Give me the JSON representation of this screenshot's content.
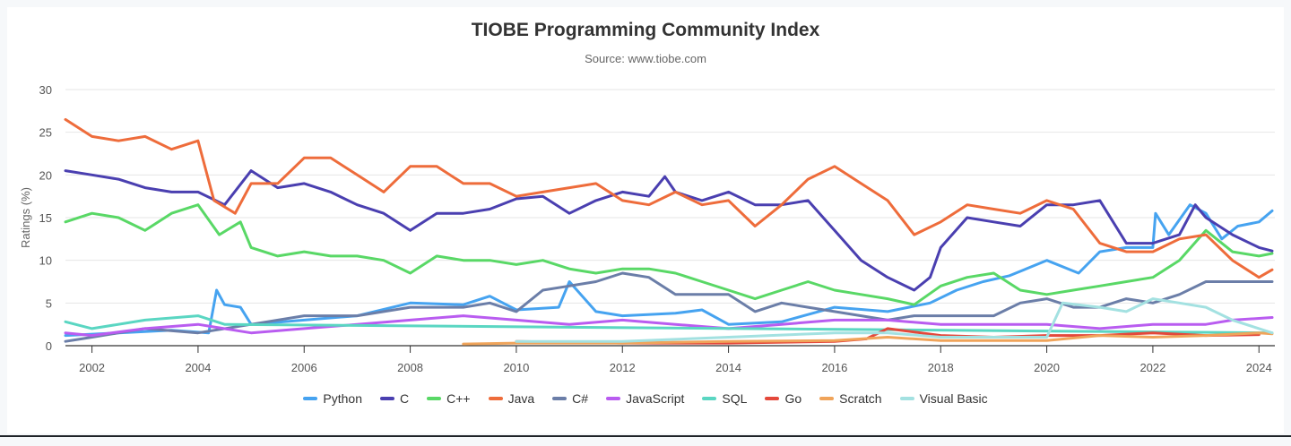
{
  "chart_data": {
    "type": "line",
    "title": "TIOBE Programming Community Index",
    "subtitle": "Source: www.tiobe.com",
    "ylabel": "Ratings (%)",
    "xlabel": "",
    "ylim": [
      0,
      30
    ],
    "xlim": [
      2001.5,
      2024.3
    ],
    "yticks": [
      0,
      5,
      10,
      15,
      20,
      25,
      30
    ],
    "xticks": [
      "2002",
      "2004",
      "2006",
      "2008",
      "2010",
      "2012",
      "2014",
      "2016",
      "2018",
      "2020",
      "2022",
      "2024"
    ],
    "grid": "horizontal",
    "legend_position": "bottom",
    "series": [
      {
        "name": "Python",
        "color": "#46a3f0",
        "points": [
          [
            2001.5,
            1.2
          ],
          [
            2002.5,
            1.5
          ],
          [
            2003.5,
            1.8
          ],
          [
            2004.2,
            1.5
          ],
          [
            2004.35,
            6.5
          ],
          [
            2004.5,
            4.8
          ],
          [
            2004.8,
            4.5
          ],
          [
            2005,
            2.5
          ],
          [
            2006,
            3
          ],
          [
            2007,
            3.5
          ],
          [
            2008,
            5
          ],
          [
            2009,
            4.8
          ],
          [
            2009.5,
            5.8
          ],
          [
            2010,
            4.2
          ],
          [
            2010.8,
            4.5
          ],
          [
            2011,
            7.5
          ],
          [
            2011.5,
            4
          ],
          [
            2012,
            3.5
          ],
          [
            2013,
            3.8
          ],
          [
            2013.5,
            4.2
          ],
          [
            2014,
            2.5
          ],
          [
            2015,
            2.8
          ],
          [
            2016,
            4.5
          ],
          [
            2017,
            4
          ],
          [
            2017.8,
            5
          ],
          [
            2018.3,
            6.5
          ],
          [
            2018.8,
            7.5
          ],
          [
            2019.3,
            8.2
          ],
          [
            2020,
            10
          ],
          [
            2020.6,
            8.5
          ],
          [
            2021,
            11
          ],
          [
            2021.5,
            11.5
          ],
          [
            2022,
            11.5
          ],
          [
            2022.05,
            15.5
          ],
          [
            2022.3,
            13
          ],
          [
            2022.7,
            16.5
          ],
          [
            2023,
            15.5
          ],
          [
            2023.3,
            12.5
          ],
          [
            2023.6,
            14
          ],
          [
            2024,
            14.5
          ],
          [
            2024.25,
            15.8
          ]
        ]
      },
      {
        "name": "C",
        "color": "#4a3fb0",
        "points": [
          [
            2001.5,
            20.5
          ],
          [
            2002,
            20
          ],
          [
            2002.5,
            19.5
          ],
          [
            2003,
            18.5
          ],
          [
            2003.5,
            18
          ],
          [
            2004,
            18
          ],
          [
            2004.5,
            16.5
          ],
          [
            2005,
            20.5
          ],
          [
            2005.5,
            18.5
          ],
          [
            2006,
            19
          ],
          [
            2006.5,
            18
          ],
          [
            2007,
            16.5
          ],
          [
            2007.5,
            15.5
          ],
          [
            2008,
            13.5
          ],
          [
            2008.5,
            15.5
          ],
          [
            2009,
            15.5
          ],
          [
            2009.5,
            16
          ],
          [
            2010,
            17.2
          ],
          [
            2010.5,
            17.5
          ],
          [
            2011,
            15.5
          ],
          [
            2011.5,
            17
          ],
          [
            2012,
            18
          ],
          [
            2012.5,
            17.5
          ],
          [
            2012.8,
            19.8
          ],
          [
            2013,
            18
          ],
          [
            2013.5,
            17
          ],
          [
            2014,
            18
          ],
          [
            2014.5,
            16.5
          ],
          [
            2015,
            16.5
          ],
          [
            2015.5,
            17
          ],
          [
            2016,
            13.5
          ],
          [
            2016.5,
            10
          ],
          [
            2017,
            8
          ],
          [
            2017.5,
            6.5
          ],
          [
            2017.8,
            8
          ],
          [
            2018,
            11.5
          ],
          [
            2018.5,
            15
          ],
          [
            2019,
            14.5
          ],
          [
            2019.5,
            14
          ],
          [
            2020,
            16.5
          ],
          [
            2020.5,
            16.5
          ],
          [
            2021,
            17
          ],
          [
            2021.5,
            12
          ],
          [
            2022,
            12
          ],
          [
            2022.5,
            13
          ],
          [
            2022.8,
            16.5
          ],
          [
            2023,
            15
          ],
          [
            2023.5,
            13
          ],
          [
            2024,
            11.5
          ],
          [
            2024.25,
            11.1
          ]
        ]
      },
      {
        "name": "C++",
        "color": "#59d866",
        "points": [
          [
            2001.5,
            14.5
          ],
          [
            2002,
            15.5
          ],
          [
            2002.5,
            15
          ],
          [
            2003,
            13.5
          ],
          [
            2003.5,
            15.5
          ],
          [
            2004,
            16.5
          ],
          [
            2004.4,
            13
          ],
          [
            2004.8,
            14.5
          ],
          [
            2005,
            11.5
          ],
          [
            2005.5,
            10.5
          ],
          [
            2006,
            11
          ],
          [
            2006.5,
            10.5
          ],
          [
            2007,
            10.5
          ],
          [
            2007.5,
            10
          ],
          [
            2008,
            8.5
          ],
          [
            2008.5,
            10.5
          ],
          [
            2009,
            10
          ],
          [
            2009.5,
            10
          ],
          [
            2010,
            9.5
          ],
          [
            2010.5,
            10
          ],
          [
            2011,
            9
          ],
          [
            2011.5,
            8.5
          ],
          [
            2012,
            9
          ],
          [
            2012.5,
            9
          ],
          [
            2013,
            8.5
          ],
          [
            2013.5,
            7.5
          ],
          [
            2014,
            6.5
          ],
          [
            2014.5,
            5.5
          ],
          [
            2015,
            6.5
          ],
          [
            2015.5,
            7.5
          ],
          [
            2016,
            6.5
          ],
          [
            2016.5,
            6
          ],
          [
            2017,
            5.5
          ],
          [
            2017.5,
            4.8
          ],
          [
            2018,
            7
          ],
          [
            2018.5,
            8
          ],
          [
            2019,
            8.5
          ],
          [
            2019.5,
            6.5
          ],
          [
            2020,
            6
          ],
          [
            2020.5,
            6.5
          ],
          [
            2021,
            7
          ],
          [
            2021.5,
            7.5
          ],
          [
            2022,
            8
          ],
          [
            2022.5,
            10
          ],
          [
            2023,
            13.5
          ],
          [
            2023.5,
            11
          ],
          [
            2024,
            10.5
          ],
          [
            2024.25,
            10.8
          ]
        ]
      },
      {
        "name": "Java",
        "color": "#ee6c3b",
        "points": [
          [
            2001.5,
            26.5
          ],
          [
            2002,
            24.5
          ],
          [
            2002.5,
            24
          ],
          [
            2003,
            24.5
          ],
          [
            2003.5,
            23
          ],
          [
            2004,
            24
          ],
          [
            2004.3,
            17
          ],
          [
            2004.7,
            15.5
          ],
          [
            2005,
            19
          ],
          [
            2005.5,
            19
          ],
          [
            2006,
            22
          ],
          [
            2006.5,
            22
          ],
          [
            2007,
            20
          ],
          [
            2007.5,
            18
          ],
          [
            2008,
            21
          ],
          [
            2008.5,
            21
          ],
          [
            2009,
            19
          ],
          [
            2009.5,
            19
          ],
          [
            2010,
            17.5
          ],
          [
            2010.5,
            18
          ],
          [
            2011,
            18.5
          ],
          [
            2011.5,
            19
          ],
          [
            2012,
            17
          ],
          [
            2012.5,
            16.5
          ],
          [
            2013,
            18
          ],
          [
            2013.5,
            16.5
          ],
          [
            2014,
            17
          ],
          [
            2014.5,
            14
          ],
          [
            2015,
            16.5
          ],
          [
            2015.5,
            19.5
          ],
          [
            2016,
            21
          ],
          [
            2016.5,
            19
          ],
          [
            2017,
            17
          ],
          [
            2017.5,
            13
          ],
          [
            2018,
            14.5
          ],
          [
            2018.5,
            16.5
          ],
          [
            2019,
            16
          ],
          [
            2019.5,
            15.5
          ],
          [
            2020,
            17
          ],
          [
            2020.5,
            16
          ],
          [
            2021,
            12
          ],
          [
            2021.5,
            11
          ],
          [
            2022,
            11
          ],
          [
            2022.5,
            12.5
          ],
          [
            2023,
            13
          ],
          [
            2023.5,
            10
          ],
          [
            2024,
            8
          ],
          [
            2024.25,
            8.9
          ]
        ]
      },
      {
        "name": "C#",
        "color": "#6b7ea8",
        "points": [
          [
            2001.5,
            0.5
          ],
          [
            2002,
            1
          ],
          [
            2002.5,
            1.5
          ],
          [
            2003,
            2
          ],
          [
            2004,
            1.5
          ],
          [
            2005,
            2.5
          ],
          [
            2006,
            3.5
          ],
          [
            2007,
            3.5
          ],
          [
            2008,
            4.5
          ],
          [
            2009,
            4.5
          ],
          [
            2009.5,
            5
          ],
          [
            2010,
            4
          ],
          [
            2010.5,
            6.5
          ],
          [
            2011,
            7
          ],
          [
            2011.5,
            7.5
          ],
          [
            2012,
            8.5
          ],
          [
            2012.5,
            8
          ],
          [
            2013,
            6
          ],
          [
            2013.5,
            6
          ],
          [
            2014,
            6
          ],
          [
            2014.5,
            4
          ],
          [
            2015,
            5
          ],
          [
            2015.5,
            4.5
          ],
          [
            2016,
            4
          ],
          [
            2016.5,
            3.5
          ],
          [
            2017,
            3
          ],
          [
            2017.5,
            3.5
          ],
          [
            2018,
            3.5
          ],
          [
            2018.5,
            3.5
          ],
          [
            2019,
            3.5
          ],
          [
            2019.5,
            5
          ],
          [
            2020,
            5.5
          ],
          [
            2020.5,
            4.5
          ],
          [
            2021,
            4.5
          ],
          [
            2021.5,
            5.5
          ],
          [
            2022,
            5
          ],
          [
            2022.5,
            6
          ],
          [
            2023,
            7.5
          ],
          [
            2023.5,
            7.5
          ],
          [
            2024,
            7.5
          ],
          [
            2024.25,
            7.5
          ]
        ]
      },
      {
        "name": "JavaScript",
        "color": "#b95cf0",
        "points": [
          [
            2001.5,
            1.5
          ],
          [
            2002,
            1.2
          ],
          [
            2003,
            2
          ],
          [
            2004,
            2.5
          ],
          [
            2005,
            1.5
          ],
          [
            2006,
            2
          ],
          [
            2007,
            2.5
          ],
          [
            2008,
            3
          ],
          [
            2009,
            3.5
          ],
          [
            2010,
            3
          ],
          [
            2011,
            2.5
          ],
          [
            2012,
            3
          ],
          [
            2013,
            2.5
          ],
          [
            2014,
            2
          ],
          [
            2015,
            2.5
          ],
          [
            2016,
            3
          ],
          [
            2017,
            3
          ],
          [
            2018,
            2.5
          ],
          [
            2019,
            2.5
          ],
          [
            2020,
            2.5
          ],
          [
            2021,
            2
          ],
          [
            2022,
            2.5
          ],
          [
            2023,
            2.5
          ],
          [
            2023.5,
            3
          ],
          [
            2024,
            3.2
          ],
          [
            2024.25,
            3.3
          ]
        ]
      },
      {
        "name": "SQL",
        "color": "#5ad6c2",
        "points": [
          [
            2001.5,
            2.8
          ],
          [
            2002,
            2
          ],
          [
            2003,
            3
          ],
          [
            2004,
            3.5
          ],
          [
            2004.5,
            2.5
          ],
          [
            2024.25,
            1.5
          ]
        ]
      },
      {
        "name": "Go",
        "color": "#e4483b",
        "points": [
          [
            2010,
            0.5
          ],
          [
            2012,
            0.3
          ],
          [
            2014,
            0.3
          ],
          [
            2016,
            0.5
          ],
          [
            2016.6,
            0.8
          ],
          [
            2017,
            2
          ],
          [
            2018,
            1.2
          ],
          [
            2019,
            1
          ],
          [
            2020,
            1.2
          ],
          [
            2021,
            1.2
          ],
          [
            2022,
            1.5
          ],
          [
            2023,
            1.2
          ],
          [
            2024,
            1.3
          ]
        ]
      },
      {
        "name": "Scratch",
        "color": "#f0a45a",
        "points": [
          [
            2009,
            0.2
          ],
          [
            2010,
            0.3
          ],
          [
            2012,
            0.3
          ],
          [
            2014,
            0.5
          ],
          [
            2016,
            0.6
          ],
          [
            2017,
            1
          ],
          [
            2018,
            0.6
          ],
          [
            2019,
            0.6
          ],
          [
            2020,
            0.6
          ],
          [
            2021,
            1.2
          ],
          [
            2022,
            1
          ],
          [
            2023,
            1.2
          ],
          [
            2024,
            1.5
          ],
          [
            2024.25,
            1.4
          ]
        ]
      },
      {
        "name": "Visual Basic",
        "color": "#a3e1e1",
        "points": [
          [
            2010,
            0.5
          ],
          [
            2012,
            0.5
          ],
          [
            2014,
            1
          ],
          [
            2016,
            1.5
          ],
          [
            2017,
            1.5
          ],
          [
            2018,
            1
          ],
          [
            2019,
            1
          ],
          [
            2020,
            1
          ],
          [
            2020.3,
            5
          ],
          [
            2021,
            4.5
          ],
          [
            2021.5,
            4
          ],
          [
            2022,
            5.5
          ],
          [
            2022.5,
            5
          ],
          [
            2023,
            4.5
          ],
          [
            2023.5,
            3
          ],
          [
            2024,
            2
          ],
          [
            2024.25,
            1.5
          ]
        ]
      }
    ]
  }
}
